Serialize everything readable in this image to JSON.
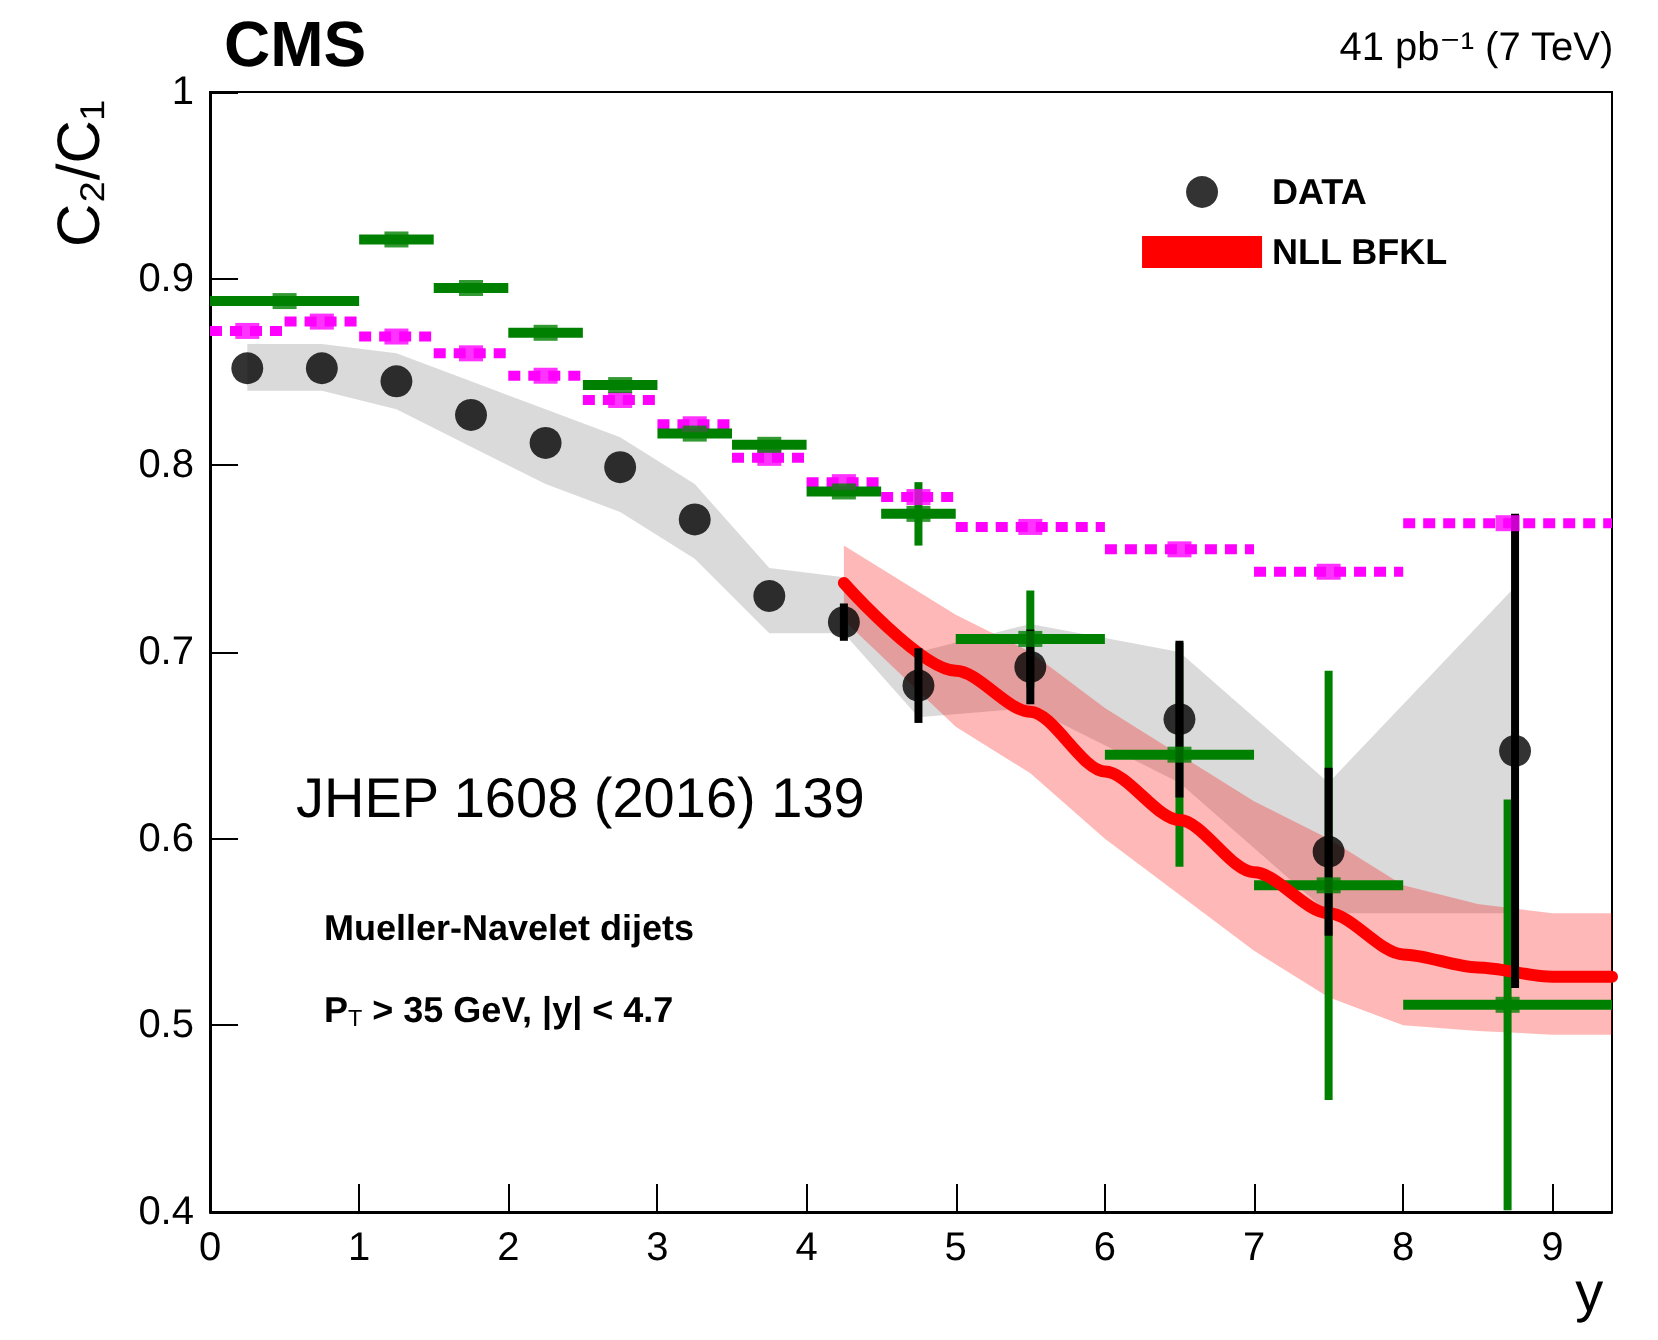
{
  "chart_data": {
    "type": "scatter",
    "title": "CMS",
    "subtitle": "41 pb⁻¹ (7 TeV)",
    "xlabel": "y",
    "ylabel": "C₂/C₁",
    "annotations": [
      "JHEP 1608 (2016) 139",
      "Mueller-Navelet dijets",
      "P$_{T}$ > 35 GeV, |y| < 4.7"
    ],
    "xlim": [
      0,
      9.4
    ],
    "xticks": [
      0,
      1,
      2,
      3,
      4,
      5,
      6,
      7,
      8,
      9
    ],
    "ylim": [
      0.4,
      1.0
    ],
    "yticks": [
      0.4,
      0.5,
      0.6,
      0.7,
      0.8,
      0.9,
      1
    ],
    "grid": false,
    "legend": "top right",
    "series": [
      {
        "name": "DATA",
        "marker": "circle",
        "color": "#000000",
        "x": [
          0.25,
          0.75,
          1.25,
          1.75,
          2.25,
          2.75,
          3.25,
          3.75,
          4.25,
          4.75,
          5.5,
          6.5,
          7.5,
          8.75
        ],
        "values": [
          0.852,
          0.852,
          0.845,
          0.827,
          0.812,
          0.799,
          0.771,
          0.73,
          0.716,
          0.682,
          0.692,
          0.664,
          0.593,
          0.647
        ],
        "errors": [
          null,
          null,
          null,
          null,
          null,
          null,
          null,
          null,
          0.01,
          0.02,
          0.02,
          0.042,
          0.045,
          0.127
        ],
        "lower": [
          0.84,
          0.84,
          0.83,
          0.81,
          0.79,
          0.775,
          0.75,
          0.71,
          0.71,
          0.665,
          0.67,
          0.63,
          0.56,
          0.56
        ],
        "upper": [
          0.865,
          0.865,
          0.86,
          0.845,
          0.83,
          0.815,
          0.79,
          0.745,
          0.74,
          0.7,
          0.715,
          0.7,
          0.63,
          0.735
        ]
      },
      {
        "line_style": "dotted",
        "color": "#ff00ff",
        "x": [
          0.25,
          0.75,
          1.25,
          1.75,
          2.25,
          2.75,
          3.25,
          3.75,
          4.25,
          4.75,
          5.5,
          6.5,
          7.5,
          8.7
        ],
        "values": [
          0.872,
          0.877,
          0.869,
          0.86,
          0.848,
          0.835,
          0.822,
          0.804,
          0.791,
          0.783,
          0.767,
          0.755,
          0.743,
          0.769
        ],
        "xerrors": [
          0.25,
          0.25,
          0.25,
          0.25,
          0.25,
          0.25,
          0.25,
          0.25,
          0.25,
          0.25,
          0.5,
          0.5,
          0.5,
          0.7
        ]
      },
      {
        "name": "NLL BFKL",
        "type": "line",
        "marker": "none",
        "color": "#ff0000",
        "x": [
          4.25,
          5,
          5.5,
          6,
          6.5,
          7,
          7.5,
          8,
          8.5,
          9,
          9.4
        ],
        "values": [
          0.737,
          0.69,
          0.668,
          0.636,
          0.61,
          0.582,
          0.56,
          0.538,
          0.531,
          0.526,
          0.526
        ],
        "lower": [
          0.717,
          0.66,
          0.635,
          0.6,
          0.57,
          0.54,
          0.515,
          0.5,
          0.497,
          0.495,
          0.495
        ],
        "upper": [
          0.757,
          0.72,
          0.7,
          0.67,
          0.645,
          0.62,
          0.6,
          0.575,
          0.565,
          0.56,
          0.56
        ]
      },
      {
        "line_style": "solid",
        "color": "#008000",
        "x": [
          0.5,
          1.25,
          1.75,
          2.25,
          2.75,
          3.25,
          3.75,
          4.25,
          4.75,
          5.5,
          6.5,
          7.5,
          8.7
        ],
        "values": [
          0.888,
          0.921,
          0.895,
          0.871,
          0.843,
          0.817,
          0.811,
          0.786,
          0.774,
          0.707,
          0.645,
          0.575,
          0.511
        ],
        "xerrors": [
          0.5,
          0.25,
          0.25,
          0.25,
          0.25,
          0.25,
          0.25,
          0.25,
          0.25,
          0.5,
          0.5,
          0.5,
          0.7
        ],
        "errors": [
          null,
          null,
          null,
          null,
          null,
          null,
          null,
          null,
          0.017,
          0.026,
          0.06,
          0.115,
          0.11
        ]
      }
    ]
  }
}
